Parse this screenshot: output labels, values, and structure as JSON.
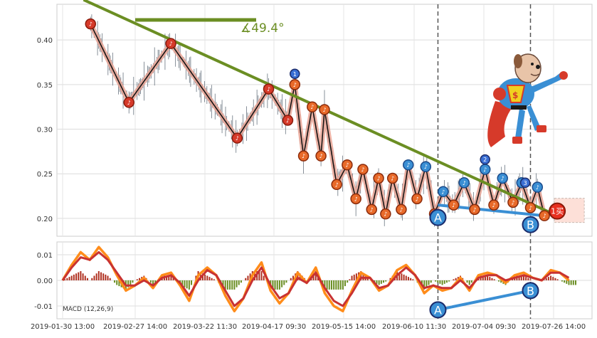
{
  "chart_data": [
    {
      "type": "line",
      "panel": "price",
      "ylim": [
        0.18,
        0.44
      ],
      "yticks": [
        "0.40",
        "0.35",
        "0.30",
        "0.25",
        "0.20"
      ],
      "grid": true,
      "price_line": [
        [
          0,
          0.33
        ],
        [
          2,
          0.38
        ],
        [
          4,
          0.36
        ],
        [
          6,
          0.4
        ],
        [
          8,
          0.37
        ],
        [
          10,
          0.39
        ],
        [
          12,
          0.34
        ],
        [
          14,
          0.37
        ],
        [
          16,
          0.33
        ],
        [
          18,
          0.36
        ],
        [
          20,
          0.38
        ],
        [
          22,
          0.36
        ],
        [
          24,
          0.39
        ],
        [
          26,
          0.37
        ],
        [
          28,
          0.35
        ],
        [
          30,
          0.36
        ],
        [
          32,
          0.34
        ],
        [
          34,
          0.33
        ],
        [
          36,
          0.31
        ],
        [
          38,
          0.32
        ],
        [
          40,
          0.33
        ],
        [
          42,
          0.34
        ],
        [
          44,
          0.35
        ],
        [
          46,
          0.33
        ],
        [
          48,
          0.31
        ],
        [
          50,
          0.3
        ],
        [
          52,
          0.27
        ],
        [
          54,
          0.3
        ],
        [
          56,
          0.32
        ],
        [
          58,
          0.29
        ],
        [
          60,
          0.27
        ],
        [
          62,
          0.25
        ],
        [
          64,
          0.26
        ],
        [
          66,
          0.24
        ],
        [
          68,
          0.23
        ],
        [
          70,
          0.24
        ],
        [
          72,
          0.22
        ],
        [
          74,
          0.23
        ],
        [
          76,
          0.24
        ],
        [
          78,
          0.23
        ],
        [
          80,
          0.24
        ],
        [
          82,
          0.22
        ],
        [
          84,
          0.23
        ],
        [
          86,
          0.24
        ],
        [
          88,
          0.22
        ],
        [
          90,
          0.21
        ],
        [
          92,
          0.22
        ],
        [
          94,
          0.21
        ],
        [
          96,
          0.22
        ],
        [
          98,
          0.21
        ],
        [
          100,
          0.2
        ]
      ],
      "zigzag_path": [
        [
          16,
          0.418
        ],
        [
          38,
          0.33
        ],
        [
          62,
          0.396
        ],
        [
          100,
          0.29
        ],
        [
          118,
          0.345
        ],
        [
          129,
          0.31
        ],
        [
          133,
          0.35
        ],
        [
          138,
          0.27
        ],
        [
          143,
          0.325
        ],
        [
          148,
          0.27
        ],
        [
          150,
          0.322
        ],
        [
          157,
          0.238
        ],
        [
          163,
          0.26
        ],
        [
          168,
          0.222
        ],
        [
          172,
          0.255
        ],
        [
          177,
          0.21
        ],
        [
          181,
          0.245
        ],
        [
          185,
          0.205
        ],
        [
          189,
          0.245
        ],
        [
          194,
          0.21
        ],
        [
          198,
          0.26
        ],
        [
          203,
          0.222
        ],
        [
          208,
          0.258
        ],
        [
          213,
          0.205
        ],
        [
          218,
          0.23
        ],
        [
          224,
          0.215
        ],
        [
          230,
          0.24
        ],
        [
          236,
          0.21
        ],
        [
          242,
          0.255
        ],
        [
          247,
          0.215
        ],
        [
          252,
          0.245
        ],
        [
          258,
          0.218
        ],
        [
          263,
          0.24
        ],
        [
          268,
          0.212
        ],
        [
          272,
          0.235
        ],
        [
          276,
          0.203
        ]
      ],
      "trendline": {
        "start": [
          12,
          0.445
        ],
        "end": [
          290,
          0.197
        ],
        "label": "∡49.4°",
        "color": "#6b8e23"
      },
      "triangle_lower": {
        "start": [
          215,
          0.215
        ],
        "end": [
          276,
          0.203
        ],
        "color": "#3a8fd4"
      },
      "points": {
        "A": "A",
        "B": "B",
        "buy": "1买"
      },
      "bubble_number_1": "1",
      "bubble_number_2": "2",
      "bubble_number_3": "3",
      "dashed_verticals": [
        215,
        268
      ]
    },
    {
      "type": "line",
      "panel": "macd",
      "ylim": [
        -0.015,
        0.015
      ],
      "yticks": [
        "0.01",
        "0.00",
        "-0.01"
      ],
      "legend": "MACD (12,26,9)",
      "series": [
        {
          "values": [
            0.0,
            0.006,
            0.011,
            0.008,
            0.013,
            0.009,
            0.002,
            -0.004,
            -0.002,
            0.001,
            -0.003,
            0.002,
            0.003,
            -0.002,
            -0.008,
            0.002,
            0.005,
            0.002,
            -0.006,
            -0.012,
            -0.007,
            0.002,
            0.007,
            -0.004,
            -0.009,
            -0.005,
            0.003,
            -0.001,
            0.005,
            -0.005,
            -0.01,
            -0.012,
            -0.004,
            0.003,
            0.001,
            -0.004,
            -0.002,
            0.004,
            0.006,
            0.002,
            -0.005,
            -0.002,
            -0.004,
            -0.003,
            0.001,
            -0.004,
            0.002,
            0.003,
            0.002,
            -0.001,
            0.002,
            0.003,
            0.001,
            0.0,
            0.004,
            0.003,
            0.0
          ],
          "color": "#ff8c1a"
        },
        {
          "values": [
            0.0,
            0.005,
            0.009,
            0.008,
            0.011,
            0.008,
            0.003,
            -0.002,
            -0.002,
            0.0,
            -0.002,
            0.001,
            0.002,
            -0.001,
            -0.006,
            0.0,
            0.004,
            0.002,
            -0.004,
            -0.01,
            -0.007,
            0.0,
            0.005,
            -0.002,
            -0.007,
            -0.005,
            0.001,
            -0.001,
            0.003,
            -0.003,
            -0.008,
            -0.01,
            -0.005,
            0.001,
            0.001,
            -0.003,
            -0.002,
            0.002,
            0.005,
            0.002,
            -0.003,
            -0.002,
            -0.003,
            -0.003,
            0.0,
            -0.003,
            0.001,
            0.002,
            0.002,
            0.0,
            0.001,
            0.002,
            0.001,
            0.0,
            0.003,
            0.003,
            0.001
          ],
          "color": "#c83232"
        }
      ],
      "triangle": {
        "start": [
          215,
          -0.0115
        ],
        "end": [
          268,
          -0.004
        ],
        "color": "#3a8fd4"
      },
      "points": {
        "A": "A",
        "B": "B"
      }
    }
  ],
  "x_axis": {
    "ticks": [
      "2019-01-30 13:00",
      "2019-02-27 14:00",
      "2019-03-22 11:30",
      "2019-04-17 09:30",
      "2019-05-15 14:00",
      "2019-06-10 11:30",
      "2019-07-04 09:30",
      "2019-07-26 14:00"
    ]
  }
}
